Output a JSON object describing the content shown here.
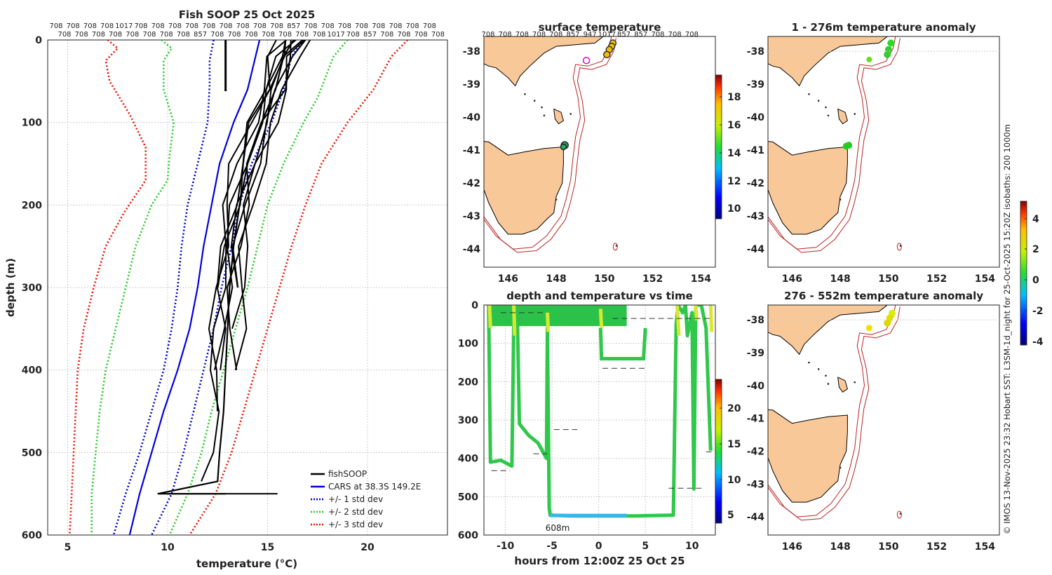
{
  "figure": {
    "copyright": "© IMOS 13-Nov-2025 23:32 Hobart SST: L3SM-1d_night for 25-Oct-2025 15:20Z isobaths: 200  1000m"
  },
  "profile": {
    "title": "Fish SOOP 25 Oct 2025",
    "xlabel": "temperature (°C)",
    "ylabel": "depth (m)",
    "xticks": [
      "5",
      "10",
      "15",
      "20"
    ],
    "yticks": [
      "0",
      "100",
      "200",
      "300",
      "400",
      "500",
      "600"
    ],
    "top_labels_row1": [
      "708",
      "708",
      "708",
      "708",
      "1017",
      "708",
      "708",
      "708",
      "708",
      "708",
      "708",
      "708",
      "708",
      "708",
      "857",
      "708",
      "708",
      "708",
      "708",
      "708",
      "708",
      "708",
      "708"
    ],
    "top_labels_row2": [
      "708",
      "708",
      "708",
      "708",
      "708",
      "708",
      "708",
      "708",
      "857",
      "708",
      "708",
      "708",
      "708",
      "708",
      "708",
      "708",
      "1017",
      "708",
      "857",
      "708",
      "708",
      "708",
      "708"
    ],
    "legend": [
      "fishSOOP",
      "CARS at 38.3S 149.2E",
      "+/- 1 std dev",
      "+/- 2 std dev",
      "+/- 3 std dev"
    ],
    "colors": {
      "fish": "#000000",
      "cars": "#0000dd",
      "std1": "#0000cc",
      "std2": "#22cc22",
      "std3": "#ee1100"
    }
  },
  "surface_map": {
    "title": "surface temperature",
    "top_labels": [
      "708",
      "708",
      "708",
      "708",
      "708",
      "857",
      "947",
      "1017",
      "857",
      "857",
      "708",
      "708",
      "708"
    ],
    "lat_ticks": [
      "-38",
      "-39",
      "-40",
      "-41",
      "-42",
      "-43",
      "-44"
    ],
    "lon_ticks": [
      "146",
      "148",
      "150",
      "152",
      "154"
    ],
    "cbar_ticks": [
      "18",
      "16",
      "14",
      "12",
      "10"
    ]
  },
  "anom1": {
    "title": "1 - 276m temperature anomaly",
    "lat_ticks": [
      "-38",
      "-39",
      "-40",
      "-41",
      "-42",
      "-43",
      "-44"
    ],
    "lon_ticks": [
      "146",
      "148",
      "150",
      "152",
      "154"
    ]
  },
  "anom2": {
    "title": "276 - 552m temperature anomaly",
    "lat_ticks": [
      "-38",
      "-39",
      "-40",
      "-41",
      "-42",
      "-43",
      "-44"
    ],
    "lon_ticks": [
      "146",
      "148",
      "150",
      "152",
      "154"
    ],
    "cbar_ticks": [
      "4",
      "2",
      "0",
      "-2",
      "-4"
    ]
  },
  "timeseries": {
    "title": "depth and temperature vs time",
    "xlabel": "hours from 12:00Z 25 Oct 25",
    "xticks": [
      "-10",
      "-5",
      "0",
      "5",
      "10"
    ],
    "yticks": [
      "0",
      "100",
      "200",
      "300",
      "400",
      "500",
      "600"
    ],
    "annotation": "608m",
    "cbar_ticks": [
      "20",
      "15",
      "10",
      "5"
    ]
  },
  "chart_data": [
    {
      "type": "line",
      "title": "Fish SOOP 25 Oct 2025",
      "xlabel": "temperature (°C)",
      "ylabel": "depth (m)",
      "xlim": [
        4,
        24
      ],
      "ylim": [
        600,
        0
      ],
      "series": [
        {
          "name": "CARS at 38.3S 149.2E",
          "points": [
            [
              14.6,
              0
            ],
            [
              14.4,
              20
            ],
            [
              14.0,
              60
            ],
            [
              13.3,
              100
            ],
            [
              12.6,
              150
            ],
            [
              12.2,
              200
            ],
            [
              11.8,
              250
            ],
            [
              11.5,
              300
            ],
            [
              11.1,
              350
            ],
            [
              10.5,
              400
            ],
            [
              9.8,
              450
            ],
            [
              9.2,
              500
            ],
            [
              8.6,
              550
            ],
            [
              8.1,
              600
            ]
          ]
        },
        {
          "name": "+/- 1 std dev low",
          "points": [
            [
              12.3,
              0
            ],
            [
              12.1,
              25
            ],
            [
              12.1,
              55
            ],
            [
              12.0,
              100
            ],
            [
              11.5,
              150
            ],
            [
              11.0,
              200
            ],
            [
              10.7,
              250
            ],
            [
              10.5,
              300
            ],
            [
              10.2,
              350
            ],
            [
              9.8,
              400
            ],
            [
              9.2,
              450
            ],
            [
              8.6,
              500
            ],
            [
              7.9,
              550
            ],
            [
              7.3,
              600
            ]
          ]
        },
        {
          "name": "+/- 1 std dev high",
          "points": [
            [
              16.8,
              0
            ],
            [
              16.2,
              20
            ],
            [
              15.8,
              60
            ],
            [
              15.2,
              100
            ],
            [
              14.2,
              150
            ],
            [
              13.6,
              200
            ],
            [
              13.2,
              250
            ],
            [
              12.7,
              300
            ],
            [
              12.3,
              350
            ],
            [
              11.8,
              400
            ],
            [
              11.3,
              450
            ],
            [
              10.8,
              500
            ],
            [
              10.2,
              550
            ],
            [
              9.2,
              600
            ]
          ]
        },
        {
          "name": "+/- 2 std dev low",
          "points": [
            [
              9.7,
              0
            ],
            [
              10.2,
              10
            ],
            [
              9.8,
              25
            ],
            [
              9.8,
              60
            ],
            [
              10.3,
              100
            ],
            [
              10.1,
              140
            ],
            [
              10.0,
              170
            ],
            [
              9.2,
              200
            ],
            [
              8.4,
              250
            ],
            [
              7.9,
              300
            ],
            [
              7.4,
              350
            ],
            [
              6.9,
              400
            ],
            [
              6.6,
              450
            ],
            [
              6.4,
              500
            ],
            [
              6.2,
              550
            ],
            [
              6.2,
              600
            ]
          ]
        },
        {
          "name": "+/- 2 std dev high",
          "points": [
            [
              19.0,
              0
            ],
            [
              18.3,
              20
            ],
            [
              17.5,
              70
            ],
            [
              16.8,
              100
            ],
            [
              15.8,
              150
            ],
            [
              15.0,
              200
            ],
            [
              14.5,
              250
            ],
            [
              14.0,
              300
            ],
            [
              13.4,
              350
            ],
            [
              12.8,
              400
            ],
            [
              12.2,
              450
            ],
            [
              11.7,
              500
            ],
            [
              11.0,
              550
            ],
            [
              10.1,
              600
            ]
          ]
        },
        {
          "name": "+/- 3 std dev low",
          "points": [
            [
              7.0,
              0
            ],
            [
              7.5,
              10
            ],
            [
              6.9,
              25
            ],
            [
              7.1,
              50
            ],
            [
              8.1,
              90
            ],
            [
              8.9,
              130
            ],
            [
              8.9,
              170
            ],
            [
              7.8,
              210
            ],
            [
              6.9,
              250
            ],
            [
              6.3,
              300
            ],
            [
              5.8,
              350
            ],
            [
              5.5,
              400
            ],
            [
              5.4,
              450
            ],
            [
              5.3,
              500
            ],
            [
              5.2,
              550
            ],
            [
              5.1,
              600
            ]
          ]
        },
        {
          "name": "+/- 3 std dev high",
          "points": [
            [
              22.0,
              0
            ],
            [
              21.2,
              20
            ],
            [
              20.3,
              60
            ],
            [
              19.0,
              100
            ],
            [
              17.7,
              150
            ],
            [
              16.9,
              200
            ],
            [
              16.2,
              250
            ],
            [
              15.6,
              300
            ],
            [
              15.0,
              350
            ],
            [
              14.4,
              400
            ],
            [
              13.8,
              450
            ],
            [
              13.2,
              500
            ],
            [
              12.4,
              550
            ],
            [
              11.1,
              600
            ]
          ]
        },
        {
          "name": "fishSOOP",
          "points": [
            [
              16.3,
              0
            ],
            [
              15.8,
              20
            ],
            [
              15.4,
              60
            ],
            [
              14.7,
              100
            ],
            [
              14.0,
              150
            ],
            [
              13.6,
              200
            ],
            [
              13.3,
              250
            ],
            [
              13.1,
              300
            ],
            [
              13.0,
              350
            ],
            [
              12.9,
              400
            ],
            [
              12.8,
              450
            ],
            [
              12.6,
              500
            ],
            [
              12.5,
              535
            ],
            [
              9.5,
              550
            ],
            [
              12.9,
              550
            ]
          ]
        }
      ]
    },
    {
      "type": "line",
      "title": "depth and temperature vs time",
      "xlabel": "hours from 12:00Z 25 Oct 25",
      "xlim": [
        -12.3,
        12.5
      ],
      "ylim": [
        600,
        0
      ],
      "series": [
        {
          "name": "dive depth",
          "points": [
            [
              -11.8,
              0
            ],
            [
              -11.6,
              410
            ],
            [
              -10.5,
              405
            ],
            [
              -9.3,
              420
            ],
            [
              -9.1,
              40
            ],
            [
              -8.7,
              50
            ],
            [
              -8.5,
              310
            ],
            [
              -7.5,
              340
            ],
            [
              -6.5,
              360
            ],
            [
              -5.6,
              400
            ],
            [
              -5.5,
              60
            ],
            [
              -5.3,
              530
            ],
            [
              -5.2,
              548
            ],
            [
              -3.0,
              550
            ],
            [
              0.0,
              550
            ],
            [
              4.0,
              550
            ],
            [
              8.0,
              548
            ],
            [
              8.3,
              50
            ],
            [
              8.5,
              0
            ],
            [
              9.0,
              20
            ],
            [
              9.3,
              0
            ],
            [
              9.5,
              80
            ],
            [
              10.0,
              20
            ],
            [
              10.2,
              480
            ],
            [
              10.4,
              0
            ],
            [
              11.0,
              0
            ],
            [
              11.5,
              60
            ],
            [
              12.0,
              380
            ]
          ]
        }
      ]
    }
  ]
}
